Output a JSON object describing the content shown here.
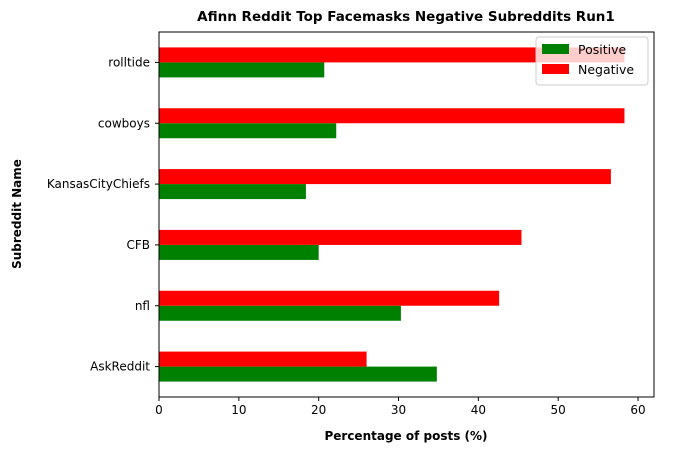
{
  "chart_data": {
    "type": "bar",
    "orientation": "horizontal",
    "title": "Afinn Reddit Top Facemasks Negative Subreddits Run1",
    "xlabel": "Percentage of posts (%)",
    "ylabel": "Subreddit Name",
    "categories": [
      "AskReddit",
      "nfl",
      "CFB",
      "KansasCityChiefs",
      "cowboys",
      "rolltide"
    ],
    "series": [
      {
        "name": "Positive",
        "color": "#008000",
        "values": [
          34.8,
          30.3,
          20.0,
          18.4,
          22.2,
          20.7
        ]
      },
      {
        "name": "Negative",
        "color": "#ff0000",
        "values": [
          26.0,
          42.6,
          45.4,
          56.6,
          58.3,
          58.3
        ]
      }
    ],
    "xlim": [
      0,
      62
    ],
    "xticks": [
      0,
      10,
      20,
      30,
      40,
      50,
      60
    ],
    "grid": false,
    "legend_position": "top-right"
  }
}
